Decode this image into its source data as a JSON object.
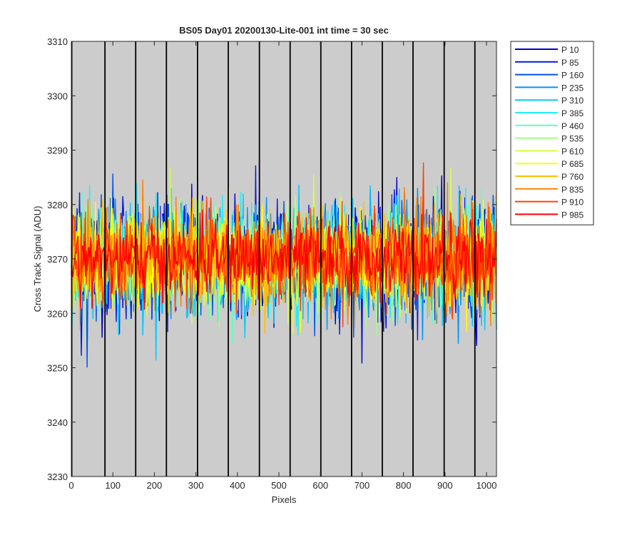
{
  "chart_data": {
    "type": "line",
    "title": "BS05 Day01 20200130-Lite-001 int time = 30 sec",
    "xlabel": "Pixels",
    "ylabel": "Cross Track Signal (ADU)",
    "xlim": [
      0,
      1024
    ],
    "ylim": [
      3230,
      3310
    ],
    "xticks": [
      0,
      100,
      200,
      300,
      400,
      500,
      600,
      700,
      800,
      900,
      1000
    ],
    "yticks": [
      3230,
      3240,
      3250,
      3260,
      3270,
      3280,
      3290,
      3300,
      3310
    ],
    "plot_background": "#cccccc",
    "vertical_lines_x": [
      1,
      81,
      155,
      229,
      304,
      378,
      453,
      527,
      601,
      675,
      749,
      823,
      898,
      972
    ],
    "signal_mean": 3270,
    "legend_position": "outside-top-right",
    "series": [
      {
        "name": "P 10",
        "color": "#0000c8",
        "spread": 10
      },
      {
        "name": "P 85",
        "color": "#0018e0",
        "spread": 9.5
      },
      {
        "name": "P 160",
        "color": "#0050f0",
        "spread": 9
      },
      {
        "name": "P 235",
        "color": "#0090f8",
        "spread": 9
      },
      {
        "name": "P 310",
        "color": "#00c8ff",
        "spread": 9
      },
      {
        "name": "P 385",
        "color": "#20f0f0",
        "spread": 8.5
      },
      {
        "name": "P 460",
        "color": "#60ffc0",
        "spread": 8.5
      },
      {
        "name": "P 535",
        "color": "#a0ff80",
        "spread": 8.5
      },
      {
        "name": "P 610",
        "color": "#d8ff40",
        "spread": 8.5
      },
      {
        "name": "P 685",
        "color": "#ffff00",
        "spread": 8
      },
      {
        "name": "P 760",
        "color": "#ffc000",
        "spread": 8
      },
      {
        "name": "P 835",
        "color": "#ff8000",
        "spread": 8
      },
      {
        "name": "P 910",
        "color": "#ff4000",
        "spread": 7.5
      },
      {
        "name": "P 985",
        "color": "#ff0000",
        "spread": 6
      }
    ]
  }
}
